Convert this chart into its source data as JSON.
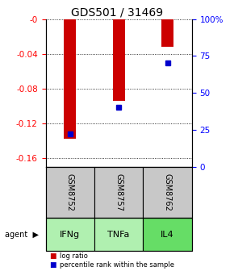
{
  "title": "GDS501 / 31469",
  "samples": [
    "GSM8752",
    "GSM8757",
    "GSM8762"
  ],
  "agents": [
    "IFNg",
    "TNFa",
    "IL4"
  ],
  "log_ratios": [
    -0.138,
    -0.094,
    -0.032
  ],
  "percentile_ranks": [
    0.22,
    0.4,
    0.7
  ],
  "ylim_left": [
    -0.17,
    0.0
  ],
  "yticks_left": [
    0.0,
    -0.04,
    -0.08,
    -0.12,
    -0.16
  ],
  "ytick_labels_left": [
    "-0",
    "-0.04",
    "-0.08",
    "-0.12",
    "-0.16"
  ],
  "yticks_right": [
    0.0,
    0.25,
    0.5,
    0.75,
    1.0
  ],
  "ytick_labels_right": [
    "0",
    "25",
    "50",
    "75",
    "100%"
  ],
  "bar_color": "#cc0000",
  "marker_color": "#0000cc",
  "sample_bg_color": "#c8c8c8",
  "agent_bg_color_light": "#b0f0b0",
  "agent_bg_color_dark": "#66dd66",
  "background_color": "#ffffff",
  "title_fontsize": 10,
  "tick_fontsize": 7.5,
  "bar_width": 0.25
}
